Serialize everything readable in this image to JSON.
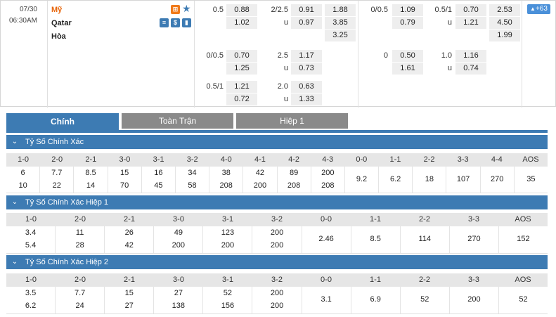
{
  "match": {
    "date": "07/30",
    "time": "06:30AM",
    "home": "Mỹ",
    "away": "Qatar",
    "draw": "Hòa",
    "more_count": "+63"
  },
  "icons": {
    "home_icon": "field-icon",
    "star": "star-icon",
    "away_icons": [
      "stats-icon",
      "dollar-icon",
      "chart-icon"
    ],
    "badge_icon": "chevron-up-icon"
  },
  "colors": {
    "accent": "#3d7bb3",
    "home_team": "#e8660c",
    "badge": "#4a90d9"
  },
  "odds_ft": {
    "hdp": [
      {
        "line": "0.5",
        "home": "0.88",
        "away": "1.02"
      },
      {
        "line": "0/0.5",
        "home": "0.70",
        "away": "1.25"
      },
      {
        "line": "0.5/1",
        "home": "1.21",
        "away": "0.72"
      }
    ],
    "ou": [
      {
        "line": "2/2.5",
        "over": "0.91",
        "under_label": "u",
        "under": "0.97"
      },
      {
        "line": "2.5",
        "over": "1.17",
        "under_label": "u",
        "under": "0.73"
      },
      {
        "line": "2.0",
        "over": "0.63",
        "under_label": "u",
        "under": "1.33"
      }
    ],
    "x12": [
      "1.88",
      "3.85",
      "3.25"
    ]
  },
  "odds_h1": {
    "hdp": [
      {
        "line": "0/0.5",
        "home": "1.09",
        "away": "0.79"
      },
      {
        "line": "0",
        "home": "0.50",
        "away": "1.61"
      }
    ],
    "ou": [
      {
        "line": "0.5/1",
        "over": "0.70",
        "under_label": "u",
        "under": "1.21"
      },
      {
        "line": "1.0",
        "over": "1.16",
        "under_label": "u",
        "under": "0.74"
      }
    ],
    "x12": [
      "2.53",
      "4.50",
      "1.99"
    ]
  },
  "tabs": [
    "Chính",
    "Toàn Trận",
    "Hiệp 1"
  ],
  "sections": [
    {
      "title": "Tỷ Số Chính Xác",
      "headers": [
        "1-0",
        "2-0",
        "2-1",
        "3-0",
        "3-1",
        "3-2",
        "4-0",
        "4-1",
        "4-2",
        "4-3",
        "0-0",
        "1-1",
        "2-2",
        "3-3",
        "4-4",
        "AOS"
      ],
      "home": [
        "6",
        "7.7",
        "8.5",
        "15",
        "16",
        "34",
        "38",
        "42",
        "89",
        "200"
      ],
      "away": [
        "10",
        "22",
        "14",
        "70",
        "45",
        "58",
        "208",
        "200",
        "208",
        "208"
      ],
      "single": [
        "9.2",
        "6.2",
        "18",
        "107",
        "270",
        "35"
      ]
    },
    {
      "title": "Tỷ Số Chính Xác Hiệp 1",
      "headers": [
        "1-0",
        "2-0",
        "2-1",
        "3-0",
        "3-1",
        "3-2",
        "0-0",
        "1-1",
        "2-2",
        "3-3",
        "AOS"
      ],
      "home": [
        "3.4",
        "11",
        "26",
        "49",
        "123",
        "200"
      ],
      "away": [
        "5.4",
        "28",
        "42",
        "200",
        "200",
        "200"
      ],
      "single": [
        "2.46",
        "8.5",
        "114",
        "270",
        "152"
      ]
    },
    {
      "title": "Tỷ Số Chính Xác Hiệp 2",
      "headers": [
        "1-0",
        "2-0",
        "2-1",
        "3-0",
        "3-1",
        "3-2",
        "0-0",
        "1-1",
        "2-2",
        "3-3",
        "AOS"
      ],
      "home": [
        "3.5",
        "7.7",
        "15",
        "27",
        "52",
        "200"
      ],
      "away": [
        "6.2",
        "24",
        "27",
        "138",
        "156",
        "200"
      ],
      "single": [
        "3.1",
        "6.9",
        "52",
        "200",
        "52"
      ]
    }
  ]
}
